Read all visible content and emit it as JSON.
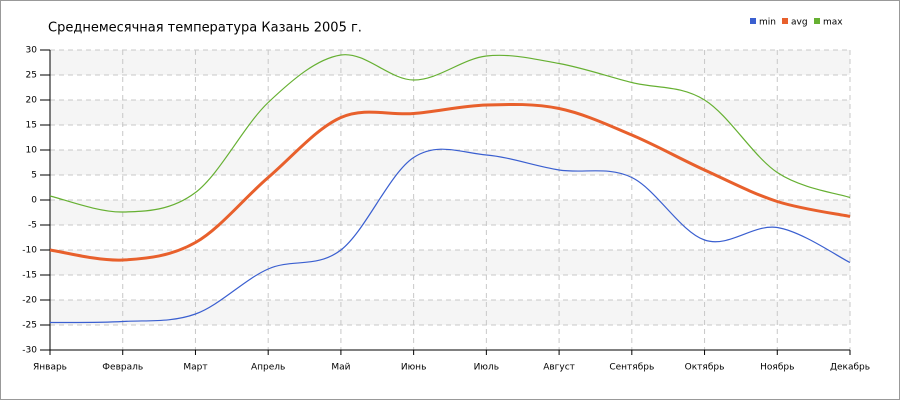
{
  "chart_data": {
    "type": "line",
    "title": "Среднемесячная температура Казань  2005 г.",
    "categories": [
      "Январь",
      "Февраль",
      "Март",
      "Апрель",
      "Май",
      "Июнь",
      "Июль",
      "Август",
      "Сентябрь",
      "Октябрь",
      "Ноябрь",
      "Декабрь"
    ],
    "series": [
      {
        "name": "min",
        "color": "#3a5fd0",
        "values": [
          -24.5,
          -24.3,
          -22.8,
          -13.8,
          -10,
          8.5,
          9,
          6,
          4.5,
          -8,
          -5.5,
          -12.5
        ]
      },
      {
        "name": "avg",
        "color": "#e8602c",
        "values": [
          -10,
          -12,
          -8.5,
          4.5,
          16.5,
          17.3,
          19,
          18.3,
          13,
          6,
          -0.3,
          -3.3
        ]
      },
      {
        "name": "max",
        "color": "#66b032",
        "values": [
          0.8,
          -2.4,
          1.5,
          19.5,
          29,
          24,
          28.8,
          27.3,
          23.5,
          20,
          5.5,
          0.5
        ]
      }
    ],
    "ylim": [
      -30,
      30
    ],
    "yticks": [
      -30,
      -25,
      -20,
      -15,
      -10,
      -5,
      0,
      5,
      10,
      15,
      20,
      25,
      30
    ],
    "grid": true
  }
}
